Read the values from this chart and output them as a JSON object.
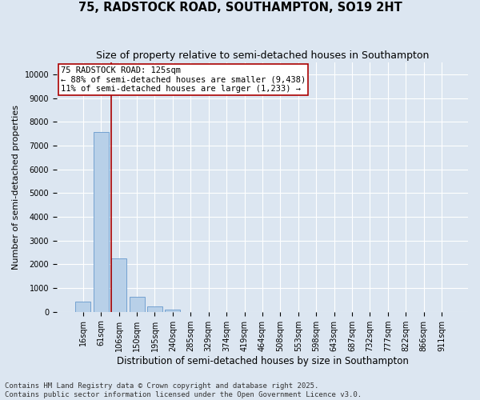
{
  "title": "75, RADSTOCK ROAD, SOUTHAMPTON, SO19 2HT",
  "subtitle": "Size of property relative to semi-detached houses in Southampton",
  "xlabel": "Distribution of semi-detached houses by size in Southampton",
  "ylabel": "Number of semi-detached properties",
  "categories": [
    "16sqm",
    "61sqm",
    "106sqm",
    "150sqm",
    "195sqm",
    "240sqm",
    "285sqm",
    "329sqm",
    "374sqm",
    "419sqm",
    "464sqm",
    "508sqm",
    "553sqm",
    "598sqm",
    "643sqm",
    "687sqm",
    "732sqm",
    "777sqm",
    "822sqm",
    "866sqm",
    "911sqm"
  ],
  "values": [
    430,
    7580,
    2250,
    630,
    240,
    80,
    0,
    0,
    0,
    0,
    0,
    0,
    0,
    0,
    0,
    0,
    0,
    0,
    0,
    0,
    0
  ],
  "bar_color": "#b8d0e8",
  "bar_edge_color": "#6699cc",
  "bg_color": "#dce6f1",
  "grid_color": "#ffffff",
  "vline_x": 1.58,
  "vline_color": "#aa0000",
  "annotation_title": "75 RADSTOCK ROAD: 125sqm",
  "annotation_line1": "← 88% of semi-detached houses are smaller (9,438)",
  "annotation_line2": "11% of semi-detached houses are larger (1,233) →",
  "annotation_box_color": "#aa0000",
  "footer_line1": "Contains HM Land Registry data © Crown copyright and database right 2025.",
  "footer_line2": "Contains public sector information licensed under the Open Government Licence v3.0.",
  "title_fontsize": 10.5,
  "subtitle_fontsize": 9,
  "ylabel_fontsize": 8,
  "xlabel_fontsize": 8.5,
  "tick_fontsize": 7,
  "annotation_fontsize": 7.5,
  "footer_fontsize": 6.5,
  "ylim": [
    0,
    10500
  ],
  "yticks": [
    0,
    1000,
    2000,
    3000,
    4000,
    5000,
    6000,
    7000,
    8000,
    9000,
    10000
  ]
}
